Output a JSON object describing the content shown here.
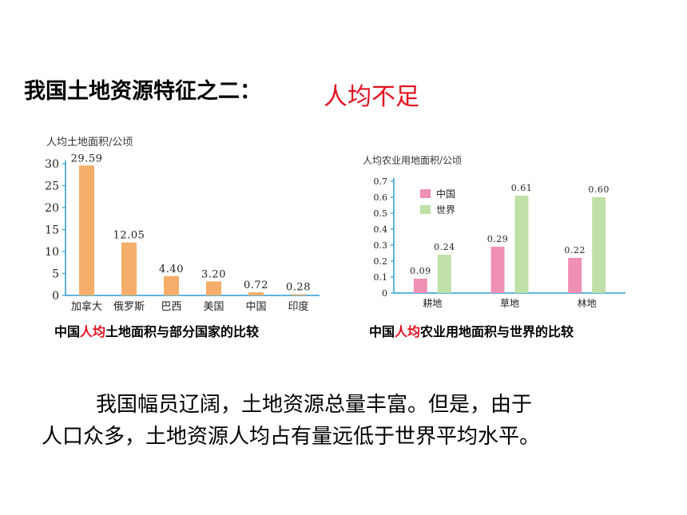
{
  "heading": {
    "prefix": "我国土地资源特征之二：",
    "highlight": "人均不足"
  },
  "chart_data": [
    {
      "type": "bar",
      "ylabel": "人均土地面积/公顷",
      "categories": [
        "加拿大",
        "俄罗斯",
        "巴西",
        "美国",
        "中国",
        "印度"
      ],
      "values": [
        29.59,
        12.05,
        4.4,
        3.2,
        0.72,
        0.28
      ],
      "value_labels": [
        "29.59",
        "12.05",
        "4.40",
        "3.20",
        "0.72",
        "0.28"
      ],
      "ylim": [
        0,
        30
      ],
      "yticks": [
        "0",
        "5",
        "10",
        "15",
        "20",
        "25",
        "30"
      ],
      "bar_color": "#f4ae6a",
      "caption": {
        "pre": "中国",
        "red": "人均",
        "post": "土地面积与部分国家的比较"
      }
    },
    {
      "type": "bar",
      "ylabel": "人均农业用地面积/公顷",
      "categories": [
        "耕地",
        "草地",
        "林地"
      ],
      "series": [
        {
          "name": "中国",
          "color": "#f08fb5",
          "values": [
            0.09,
            0.29,
            0.22
          ],
          "value_labels": [
            "0.09",
            "0.29",
            "0.22"
          ]
        },
        {
          "name": "世界",
          "color": "#bfe0a6",
          "values": [
            0.24,
            0.61,
            0.6
          ],
          "value_labels": [
            "0.24",
            "0.61",
            "0.60"
          ]
        }
      ],
      "ylim": [
        0,
        0.7
      ],
      "yticks": [
        "0",
        "0.1",
        "0.2",
        "0.3",
        "0.4",
        "0.5",
        "0.6",
        "0.7"
      ],
      "legend": "top-left",
      "caption": {
        "pre": "中国",
        "red": "人均",
        "post": "农业用地面积与世界的比较"
      }
    }
  ],
  "paragraph": {
    "line1": "我国幅员辽阔，土地资源总量丰富。但是，由于",
    "line2": "人口众多，土地资源人均占有量远低于世界平均水平。"
  }
}
